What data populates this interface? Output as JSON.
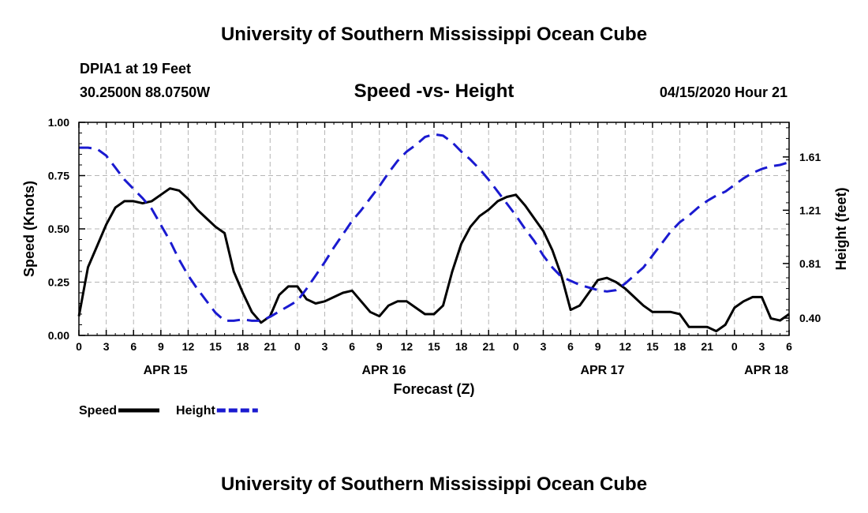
{
  "page": {
    "top_title": "University of Southern Mississippi Ocean Cube",
    "bottom_title": "University of Southern Mississippi Ocean Cube",
    "station": "DPIA1 at 19 Feet",
    "coords": "30.2500N 88.0750W",
    "timestamp": "04/15/2020 Hour 21"
  },
  "chart_data": {
    "type": "line",
    "title": "Speed -vs- Height",
    "xlabel": "Forecast (Z)",
    "ylabel": "Speed (Knots)",
    "y2label": "Height (feet)",
    "xlim": [
      0,
      78
    ],
    "ylim": [
      0,
      1.0
    ],
    "y2lim": [
      0.27,
      1.87
    ],
    "x_ticks": [
      0,
      3,
      6,
      9,
      12,
      15,
      18,
      21,
      24,
      27,
      30,
      33,
      36,
      39,
      42,
      45,
      48,
      51,
      54,
      57,
      60,
      63,
      66,
      69,
      72,
      75,
      78
    ],
    "x_tick_labels": [
      "0",
      "3",
      "6",
      "9",
      "12",
      "15",
      "18",
      "21",
      "0",
      "3",
      "6",
      "9",
      "12",
      "15",
      "18",
      "21",
      "0",
      "3",
      "6",
      "9",
      "12",
      "15",
      "18",
      "21",
      "0",
      "3",
      "6"
    ],
    "date_labels": [
      {
        "x": 9.5,
        "label": "APR 15"
      },
      {
        "x": 33.5,
        "label": "APR 16"
      },
      {
        "x": 57.5,
        "label": "APR 17"
      },
      {
        "x": 75.5,
        "label": "APR 18"
      }
    ],
    "y_ticks": [
      0.0,
      0.25,
      0.5,
      0.75,
      1.0
    ],
    "y_tick_labels": [
      "0.00",
      "0.25",
      "0.50",
      "0.75",
      "1.00"
    ],
    "y2_ticks": [
      0.4,
      0.81,
      1.21,
      1.61
    ],
    "y2_tick_labels": [
      "0.40",
      "0.81",
      "1.21",
      "1.61"
    ],
    "grid": true,
    "legend": "bottom-left",
    "series": [
      {
        "name": "Speed",
        "axis": "left",
        "color": "#000000",
        "style": "solid",
        "x": [
          0,
          1,
          2,
          3,
          4,
          5,
          6,
          7,
          8,
          9,
          10,
          11,
          12,
          13,
          14,
          15,
          16,
          17,
          18,
          19,
          20,
          21,
          22,
          23,
          24,
          25,
          26,
          27,
          28,
          29,
          30,
          31,
          32,
          33,
          34,
          35,
          36,
          37,
          38,
          39,
          40,
          41,
          42,
          43,
          44,
          45,
          46,
          47,
          48,
          49,
          50,
          51,
          52,
          53,
          54,
          55,
          56,
          57,
          58,
          59,
          60,
          61,
          62,
          63,
          64,
          65,
          66,
          67,
          68,
          69,
          70,
          71,
          72,
          73,
          74,
          75,
          76,
          77,
          78
        ],
        "values": [
          0.09,
          0.32,
          0.42,
          0.52,
          0.6,
          0.63,
          0.63,
          0.62,
          0.63,
          0.66,
          0.69,
          0.68,
          0.64,
          0.59,
          0.55,
          0.51,
          0.48,
          0.3,
          0.2,
          0.11,
          0.06,
          0.09,
          0.19,
          0.23,
          0.23,
          0.17,
          0.15,
          0.16,
          0.18,
          0.2,
          0.21,
          0.16,
          0.11,
          0.09,
          0.14,
          0.16,
          0.16,
          0.13,
          0.1,
          0.1,
          0.14,
          0.3,
          0.43,
          0.51,
          0.56,
          0.59,
          0.63,
          0.65,
          0.66,
          0.61,
          0.55,
          0.49,
          0.4,
          0.28,
          0.12,
          0.14,
          0.2,
          0.26,
          0.27,
          0.25,
          0.22,
          0.18,
          0.14,
          0.11,
          0.11,
          0.11,
          0.1,
          0.04,
          0.04,
          0.04,
          0.02,
          0.05,
          0.13,
          0.16,
          0.18,
          0.18,
          0.08,
          0.07,
          0.1
        ]
      },
      {
        "name": "Height",
        "axis": "right",
        "color": "#1a1ad0",
        "style": "dashed",
        "x": [
          0,
          1,
          2,
          3,
          4,
          5,
          6,
          7,
          8,
          9,
          10,
          11,
          12,
          13,
          14,
          15,
          16,
          17,
          18,
          19,
          20,
          21,
          22,
          23,
          24,
          25,
          26,
          27,
          28,
          29,
          30,
          31,
          32,
          33,
          34,
          35,
          36,
          37,
          38,
          39,
          40,
          41,
          42,
          43,
          44,
          45,
          46,
          47,
          48,
          49,
          50,
          51,
          52,
          53,
          54,
          55,
          56,
          57,
          58,
          59,
          60,
          61,
          62,
          63,
          64,
          65,
          66,
          67,
          68,
          69,
          70,
          71,
          72,
          73,
          74,
          75,
          76,
          77,
          78
        ],
        "values": [
          1.68,
          1.68,
          1.67,
          1.62,
          1.53,
          1.44,
          1.37,
          1.3,
          1.22,
          1.1,
          0.98,
          0.84,
          0.72,
          0.62,
          0.53,
          0.44,
          0.38,
          0.38,
          0.39,
          0.38,
          0.38,
          0.41,
          0.45,
          0.49,
          0.53,
          0.62,
          0.72,
          0.82,
          0.93,
          1.03,
          1.13,
          1.21,
          1.3,
          1.39,
          1.49,
          1.58,
          1.65,
          1.7,
          1.76,
          1.78,
          1.77,
          1.72,
          1.65,
          1.59,
          1.52,
          1.44,
          1.35,
          1.26,
          1.17,
          1.07,
          0.98,
          0.87,
          0.78,
          0.71,
          0.68,
          0.65,
          0.63,
          0.61,
          0.6,
          0.61,
          0.66,
          0.72,
          0.78,
          0.87,
          0.96,
          1.05,
          1.12,
          1.17,
          1.23,
          1.28,
          1.32,
          1.35,
          1.4,
          1.45,
          1.49,
          1.52,
          1.54,
          1.55,
          1.57
        ]
      }
    ]
  }
}
